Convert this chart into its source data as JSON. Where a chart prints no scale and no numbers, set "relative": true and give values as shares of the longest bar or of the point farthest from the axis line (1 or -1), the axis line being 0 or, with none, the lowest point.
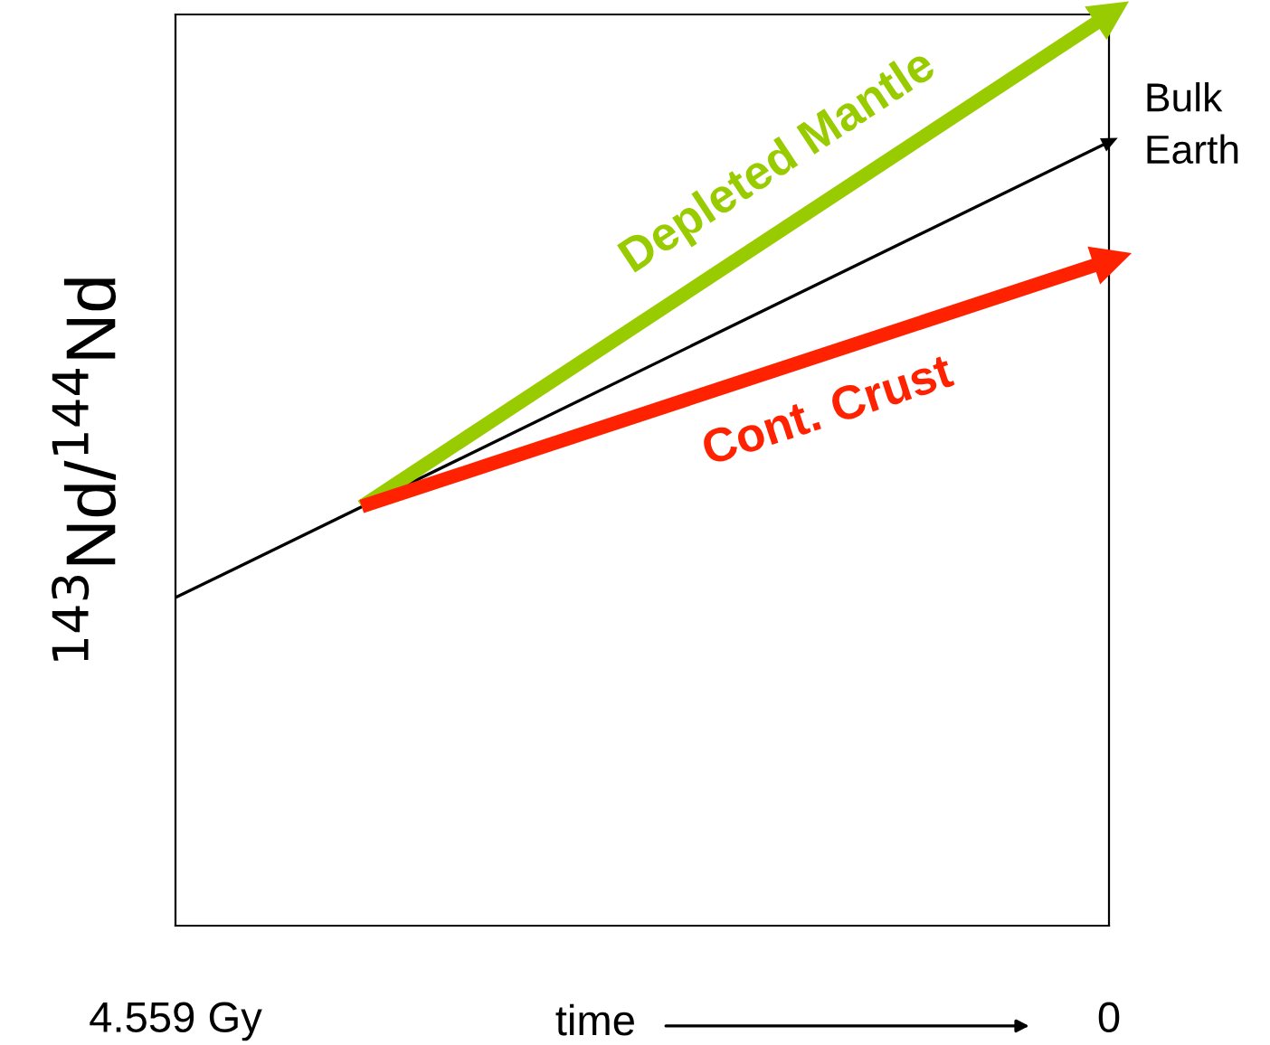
{
  "chart_data": {
    "type": "line",
    "relative": true,
    "xlabel": "time",
    "ylabel": "$^{143}$Nd/$^{144}$Nd",
    "xlim": [
      4.559,
      0
    ],
    "xticks": [
      {
        "value": 4.559,
        "label": "4.559 Gy"
      },
      0
    ],
    "tick_labels": "x",
    "grid": false,
    "line_style": "solid",
    "series": [
      {
        "name": "Bulk Earth",
        "color": "#000000",
        "x": [
          4.559,
          0
        ],
        "values": [
          0.36,
          0.86
        ]
      },
      {
        "name": "Depleted Mantle",
        "color": "#99cc00",
        "x": [
          3.65,
          0
        ],
        "values": [
          0.46,
          1
        ]
      },
      {
        "name": "Cont. Crust",
        "color": "#ff2200",
        "x": [
          3.65,
          0
        ],
        "values": [
          0.46,
          0.73
        ]
      }
    ]
  }
}
